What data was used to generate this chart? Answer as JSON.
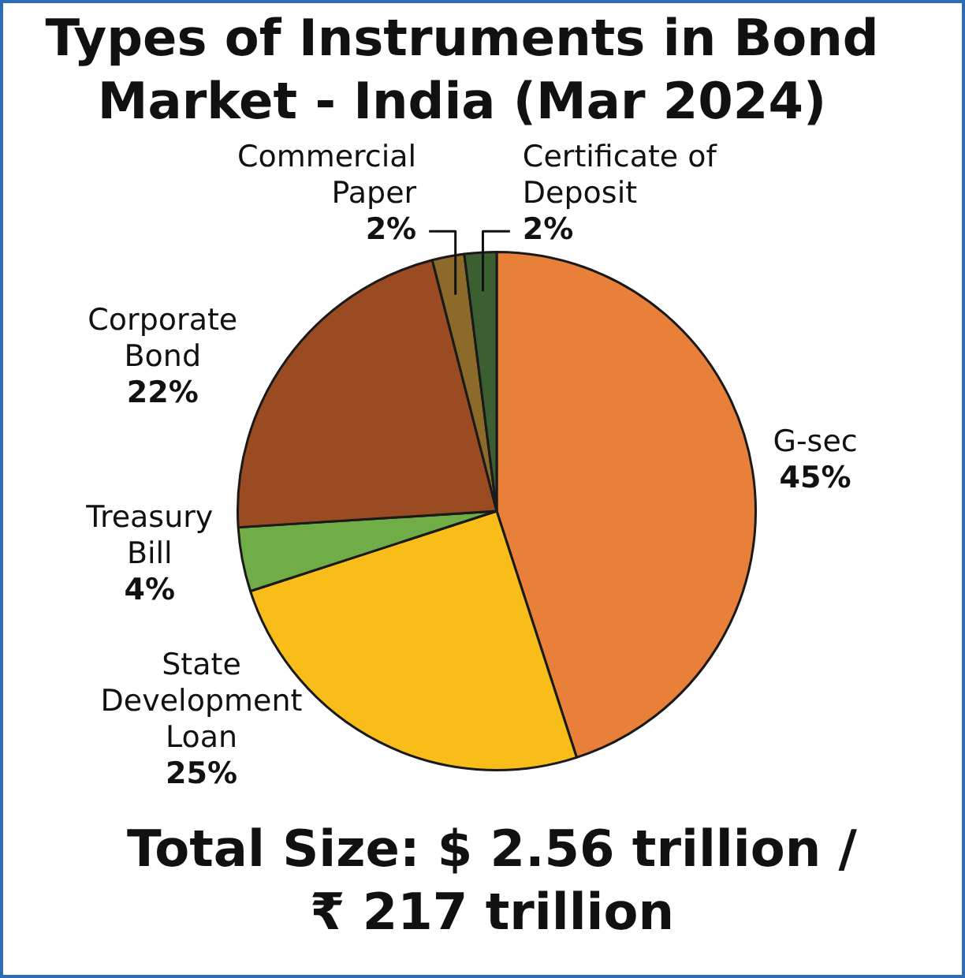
{
  "chart_data": {
    "type": "pie",
    "title": "Types of Instruments in Bond Market - India (Mar 2024)",
    "categories": [
      "G-sec",
      "State Development Loan",
      "Treasury Bill",
      "Corporate Bond",
      "Commercial Paper",
      "Certificate of Deposit"
    ],
    "values": [
      45,
      25,
      4,
      22,
      2,
      2
    ],
    "colors": [
      "#e8803a",
      "#f8bd19",
      "#70ad47",
      "#9b4b22",
      "#8c6b2a",
      "#3c5f32"
    ],
    "value_labels": [
      "45%",
      "25%",
      "4%",
      "22%",
      "2%",
      "2%"
    ],
    "legend": false,
    "annotations": [
      "Total Size: $ 2.56 trillion / ₹ 217 trillion"
    ]
  }
}
